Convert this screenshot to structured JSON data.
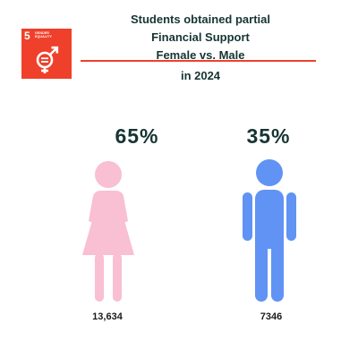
{
  "sdg": {
    "number": "5",
    "label_line1": "GENDER",
    "label_line2": "EQUALITY",
    "badge_color": "#ef402b",
    "icon": "gender-equality-icon"
  },
  "title": {
    "line1": "Students obtained partial",
    "line2": "Financial Support",
    "line3": "Female vs. Male"
  },
  "subtitle": "in 2024",
  "female": {
    "percent": "65%",
    "count": "13,634",
    "color": "#f9bfd2",
    "icon": "female-figure-icon"
  },
  "male": {
    "percent": "35%",
    "count": "7346",
    "color": "#6093f3",
    "icon": "male-figure-icon"
  },
  "colors": {
    "text": "#163532",
    "divider": "#ef402b"
  }
}
